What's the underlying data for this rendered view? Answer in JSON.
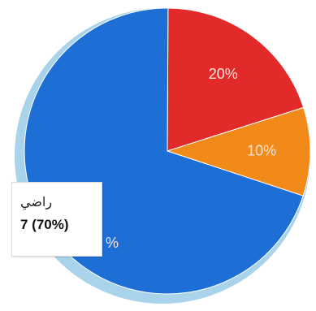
{
  "colors": {
    "outer_ring": "#a9d3ea",
    "blue": "#1d6fd6",
    "red": "#e32a2a",
    "orange": "#f28a1a",
    "label_text": "#fbe2d8"
  },
  "chart_data": {
    "type": "pie",
    "slices": [
      {
        "value": 70,
        "label": "%",
        "color": "#1d6fd6"
      },
      {
        "value": 20,
        "label": "20%",
        "color": "#e32a2a"
      },
      {
        "value": 10,
        "label": "10%",
        "color": "#f28a1a"
      }
    ],
    "tooltip": {
      "category": "راضي",
      "value": "7 (70%)"
    }
  }
}
